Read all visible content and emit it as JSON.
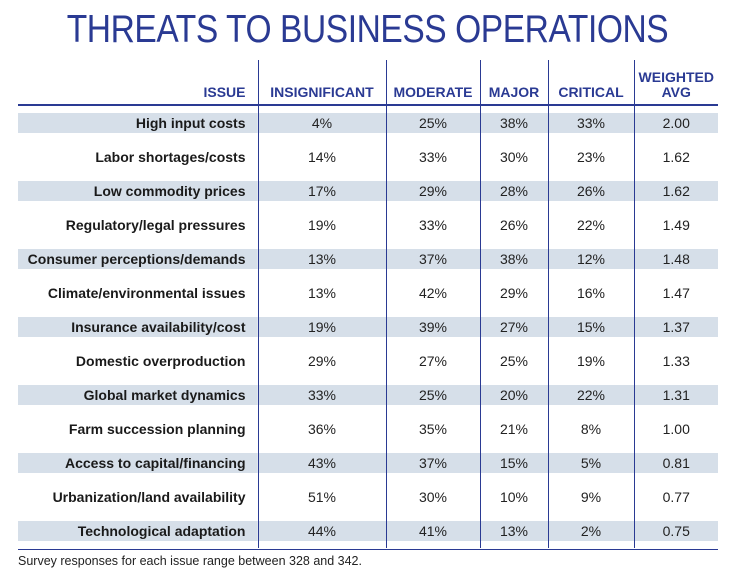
{
  "title": "THREATS TO BUSINESS OPERATIONS",
  "chart_data": {
    "type": "table",
    "title": "THREATS TO BUSINESS OPERATIONS",
    "columns": [
      "ISSUE",
      "INSIGNIFICANT",
      "MODERATE",
      "MAJOR",
      "CRITICAL",
      "WEIGHTED AVG"
    ],
    "rows": [
      [
        "High input costs",
        "4%",
        "25%",
        "38%",
        "33%",
        "2.00"
      ],
      [
        "Labor shortages/costs",
        "14%",
        "33%",
        "30%",
        "23%",
        "1.62"
      ],
      [
        "Low commodity prices",
        "17%",
        "29%",
        "28%",
        "26%",
        "1.62"
      ],
      [
        "Regulatory/legal pressures",
        "19%",
        "33%",
        "26%",
        "22%",
        "1.49"
      ],
      [
        "Consumer perceptions/demands",
        "13%",
        "37%",
        "38%",
        "12%",
        "1.48"
      ],
      [
        "Climate/environmental issues",
        "13%",
        "42%",
        "29%",
        "16%",
        "1.47"
      ],
      [
        "Insurance availability/cost",
        "19%",
        "39%",
        "27%",
        "15%",
        "1.37"
      ],
      [
        "Domestic overproduction",
        "29%",
        "27%",
        "25%",
        "19%",
        "1.33"
      ],
      [
        "Global market dynamics",
        "33%",
        "25%",
        "20%",
        "22%",
        "1.31"
      ],
      [
        "Farm succession planning",
        "36%",
        "35%",
        "21%",
        "8%",
        "1.00"
      ],
      [
        "Access to capital/financing",
        "43%",
        "37%",
        "15%",
        "5%",
        "0.81"
      ],
      [
        "Urbanization/land availability",
        "51%",
        "30%",
        "10%",
        "9%",
        "0.77"
      ],
      [
        "Technological adaptation",
        "44%",
        "41%",
        "13%",
        "2%",
        "0.75"
      ]
    ]
  },
  "footnote": "Survey responses for each issue range between 328 and 342.",
  "colors": {
    "accent": "#2a3a93",
    "row_shade": "#d6dfe9"
  }
}
